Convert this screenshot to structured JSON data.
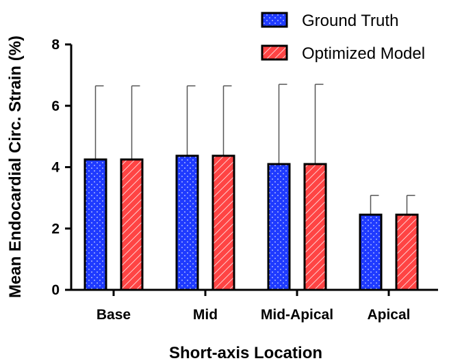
{
  "chart_data": {
    "type": "bar",
    "categories": [
      "Base",
      "Mid",
      "Mid-Apical",
      "Apical"
    ],
    "series": [
      {
        "name": "Ground Truth",
        "color": "#1f3bff",
        "pattern": "dots",
        "values": [
          4.25,
          4.37,
          4.1,
          2.45
        ],
        "error_upper": [
          6.65,
          6.65,
          6.7,
          3.08
        ]
      },
      {
        "name": "Optimized Model",
        "color": "#ff4444",
        "pattern": "diagonal-hatch",
        "values": [
          4.25,
          4.37,
          4.1,
          2.45
        ],
        "error_upper": [
          6.65,
          6.65,
          6.7,
          3.08
        ]
      }
    ],
    "xlabel": "Short-axis Location",
    "ylabel": "Mean Endocardial Circ. Strain (%)",
    "ylim": [
      0,
      8
    ],
    "yticks": [
      0,
      2,
      4,
      6,
      8
    ],
    "grid": false,
    "legend_position": "top-right"
  }
}
